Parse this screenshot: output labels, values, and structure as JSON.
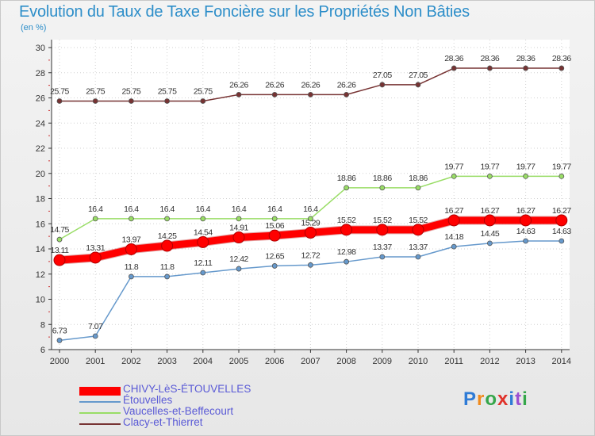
{
  "title": "Evolution du Taux de Taxe Foncière sur les Propriétés Non Bâties",
  "subtitle": "(en %)",
  "logo": {
    "text": "Proxiti"
  },
  "chart_data": {
    "type": "line",
    "title": "Evolution du Taux de Taxe Foncière sur les Propriétés Non Bâties",
    "ylabel": "(en %)",
    "xlabel": "",
    "ylim": [
      6,
      30
    ],
    "yticks": [
      6,
      8,
      10,
      12,
      14,
      16,
      18,
      20,
      22,
      24,
      26,
      28,
      30
    ],
    "categories": [
      "2000",
      "2001",
      "2002",
      "2003",
      "2004",
      "2005",
      "2006",
      "2007",
      "2008",
      "2009",
      "2010",
      "2011",
      "2012",
      "2013",
      "2014"
    ],
    "legend_position": "bottom-left",
    "series": [
      {
        "name": "CHIVY-LèS-ÉTOUVELLES",
        "color": "#ff0000",
        "values": [
          13.11,
          13.31,
          13.97,
          14.25,
          14.54,
          14.91,
          15.06,
          15.29,
          15.52,
          15.52,
          15.52,
          16.27,
          16.27,
          16.27,
          16.27
        ],
        "labels": [
          "13.11",
          "13.31",
          "13.97",
          "14.25",
          "14.54",
          "14.91",
          "15.06",
          "15.29",
          "15.52",
          "15.52",
          "15.52",
          "16.27",
          "16.27",
          "16.27",
          "16.27"
        ]
      },
      {
        "name": "Étouvelles",
        "color": "#6699cc",
        "values": [
          6.73,
          7.07,
          11.8,
          11.8,
          12.11,
          12.42,
          12.65,
          12.72,
          12.98,
          13.37,
          13.37,
          14.18,
          14.45,
          14.63,
          14.63
        ],
        "labels": [
          "6.73",
          "7.07",
          "11.8",
          "11.8",
          "12.11",
          "12.42",
          "12.65",
          "12.72",
          "12.98",
          "13.37",
          "13.37",
          "14.18",
          "14.45",
          "14.63",
          "14.63"
        ]
      },
      {
        "name": "Vaucelles-et-Beffecourt",
        "color": "#99dd66",
        "values": [
          14.75,
          16.4,
          16.4,
          16.4,
          16.4,
          16.4,
          16.4,
          16.4,
          18.86,
          18.86,
          18.86,
          19.77,
          19.77,
          19.77,
          19.77
        ],
        "labels": [
          "14.75",
          "16.4",
          "16.4",
          "16.4",
          "16.4",
          "16.4",
          "16.4",
          "16.4",
          "18.86",
          "18.86",
          "18.86",
          "19.77",
          "19.77",
          "19.77",
          "19.77"
        ]
      },
      {
        "name": "Clacy-et-Thierret",
        "color": "#773333",
        "values": [
          25.75,
          25.75,
          25.75,
          25.75,
          25.75,
          26.26,
          26.26,
          26.26,
          26.26,
          27.05,
          27.05,
          28.36,
          28.36,
          28.36,
          28.36
        ],
        "labels": [
          "25.75",
          "25.75",
          "25.75",
          "25.75",
          "25.75",
          "26.26",
          "26.26",
          "26.26",
          "26.26",
          "27.05",
          "27.05",
          "28.36",
          "28.36",
          "28.36",
          "28.36"
        ]
      }
    ]
  }
}
